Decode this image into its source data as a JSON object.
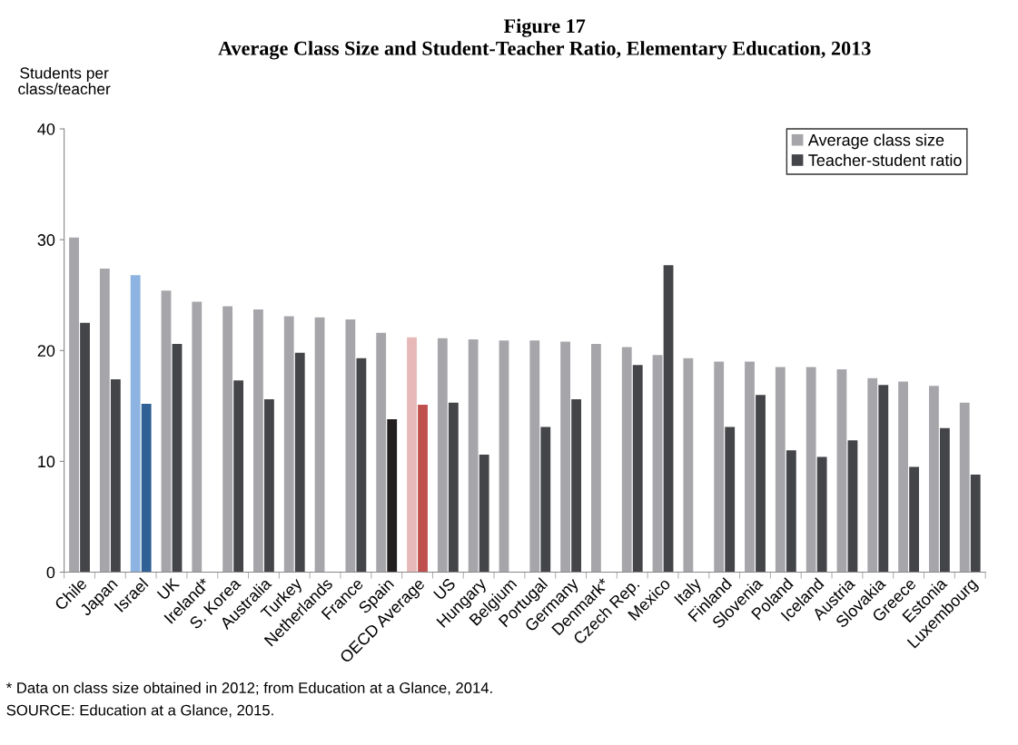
{
  "chart_data": {
    "type": "bar",
    "title": "Figure 17",
    "subtitle": "Average Class Size and Student-Teacher Ratio, Elementary Education, 2013",
    "ylabel": "Students per\nclass/teacher",
    "categories": [
      "Chile",
      "Japan",
      "Israel",
      "UK",
      "Ireland*",
      "S. Korea",
      "Australia",
      "Turkey",
      "Netherlands",
      "France",
      "Spain",
      "OECD Average",
      "US",
      "Hungary",
      "Belgium",
      "Portugal",
      "Germany",
      "Denmark*",
      "Czech Rep.",
      "Mexico",
      "Italy",
      "Finland",
      "Slovenia",
      "Poland",
      "Iceland",
      "Austria",
      "Slovakia",
      "Greece",
      "Estonia",
      "Luxembourg"
    ],
    "series": [
      {
        "name": "Average class size",
        "color": "#a6a6aa",
        "colors": [
          "#a6a6aa",
          "#a6a6aa",
          "#8db3e2",
          "#a6a6aa",
          "#a6a6aa",
          "#a6a6aa",
          "#a6a6aa",
          "#a6a6aa",
          "#a6a6aa",
          "#a6a6aa",
          "#a6a6aa",
          "#e6b9b8",
          "#a6a6aa",
          "#a6a6aa",
          "#a6a6aa",
          "#a6a6aa",
          "#a6a6aa",
          "#a6a6aa",
          "#a6a6aa",
          "#a6a6aa",
          "#a6a6aa",
          "#a6a6aa",
          "#a6a6aa",
          "#a6a6aa",
          "#a6a6aa",
          "#a6a6aa",
          "#a6a6aa",
          "#a6a6aa",
          "#a6a6aa",
          "#a6a6aa"
        ],
        "values": [
          30.2,
          27.4,
          26.8,
          25.4,
          24.4,
          24.0,
          23.7,
          23.1,
          23.0,
          22.8,
          21.6,
          21.2,
          21.1,
          21.0,
          20.9,
          20.9,
          20.8,
          20.6,
          20.3,
          19.6,
          19.3,
          19.0,
          19.0,
          18.5,
          18.5,
          18.3,
          17.5,
          17.2,
          16.8,
          15.3
        ]
      },
      {
        "name": "Teacher-student ratio",
        "color": "#444548",
        "colors": [
          "#444548",
          "#444548",
          "#2f6096",
          "#444548",
          "#444548",
          "#444548",
          "#444548",
          "#444548",
          "#444548",
          "#444548",
          "#231f20",
          "#c0504d",
          "#444548",
          "#444548",
          "#444548",
          "#444548",
          "#444548",
          "#444548",
          "#444548",
          "#444548",
          "#444548",
          "#444548",
          "#444548",
          "#444548",
          "#444548",
          "#444548",
          "#444548",
          "#444548",
          "#444548",
          "#444548"
        ],
        "values": [
          22.5,
          17.4,
          15.2,
          20.6,
          null,
          17.3,
          15.6,
          19.8,
          null,
          19.3,
          13.8,
          15.1,
          15.3,
          10.6,
          null,
          13.1,
          15.6,
          null,
          18.7,
          27.7,
          null,
          13.1,
          16.0,
          11.0,
          10.4,
          11.9,
          16.9,
          9.5,
          13.0,
          8.8
        ]
      }
    ],
    "ylim": [
      0,
      40
    ],
    "yticks": [
      0,
      10,
      20,
      30,
      40
    ],
    "grid": false,
    "legend": "top right",
    "annotations": [
      "* Data on class size obtained in 2012; from Education at a Glance, 2014.",
      "SOURCE: Education at a Glance, 2015."
    ]
  }
}
